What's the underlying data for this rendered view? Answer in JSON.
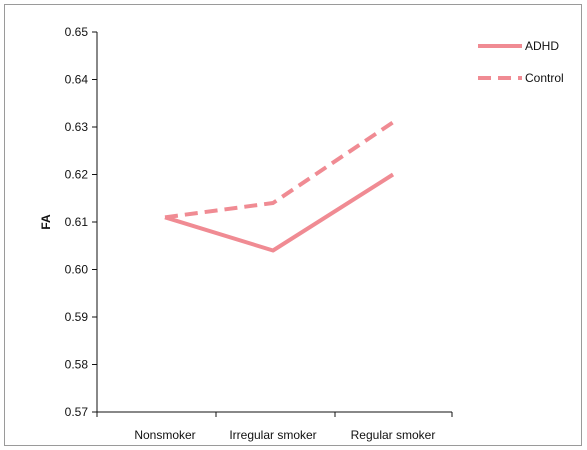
{
  "chart_data": {
    "type": "line",
    "title": "",
    "xlabel": "",
    "ylabel": "FA",
    "categories": [
      "Nonsmoker",
      "Irregular smoker",
      "Regular smoker"
    ],
    "ylim": [
      0.57,
      0.65
    ],
    "yticks": [
      "0.57",
      "0.58",
      "0.59",
      "0.60",
      "0.61",
      "0.62",
      "0.63",
      "0.64",
      "0.65"
    ],
    "grid": false,
    "legend_position": "top-right",
    "series": [
      {
        "name": "ADHD",
        "values": [
          0.611,
          0.604,
          0.62
        ],
        "style": "solid",
        "color": "#f08b93"
      },
      {
        "name": "Control",
        "values": [
          0.611,
          0.614,
          0.631
        ],
        "style": "dashed",
        "color": "#f08b93"
      }
    ]
  }
}
